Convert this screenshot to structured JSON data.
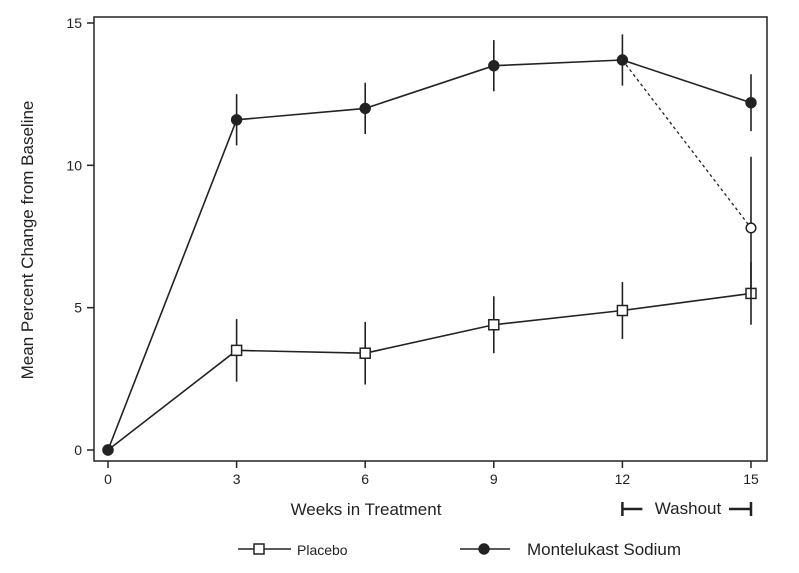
{
  "chart_data": {
    "type": "line",
    "xlabel": "Weeks in Treatment",
    "ylabel": "Mean Percent Change from Baseline",
    "x_ticks": [
      0,
      3,
      6,
      9,
      12,
      15
    ],
    "y_ticks": [
      0,
      5,
      10,
      15
    ],
    "xlim": [
      0,
      15
    ],
    "ylim": [
      0,
      15
    ],
    "washout_label": "Washout",
    "washout_range": [
      12,
      15
    ],
    "series": [
      {
        "name": "Placebo",
        "marker": "open-square",
        "color": "#222222",
        "x": [
          0,
          3,
          6,
          9,
          12,
          15
        ],
        "y": [
          0,
          3.5,
          3.4,
          4.4,
          4.9,
          5.5
        ],
        "err": [
          0,
          1.1,
          1.1,
          1.0,
          1.0,
          1.1
        ]
      },
      {
        "name": "Montelukast Sodium",
        "marker": "filled-circle",
        "color": "#222222",
        "x": [
          0,
          3,
          6,
          9,
          12,
          15
        ],
        "y": [
          0,
          11.6,
          12.0,
          13.5,
          13.7,
          12.2
        ],
        "err": [
          0,
          0.9,
          0.9,
          0.9,
          0.9,
          1.0
        ]
      },
      {
        "name": "",
        "marker": "open-circle",
        "dashed": true,
        "color": "#222222",
        "x": [
          12,
          15
        ],
        "y": [
          13.7,
          7.8
        ],
        "err": [
          0,
          2.5
        ]
      }
    ],
    "legend": [
      {
        "label": "Placebo",
        "marker": "open-square"
      },
      {
        "label": "Montelukast Sodium",
        "marker": "filled-circle"
      }
    ],
    "legend_position": "bottom"
  }
}
